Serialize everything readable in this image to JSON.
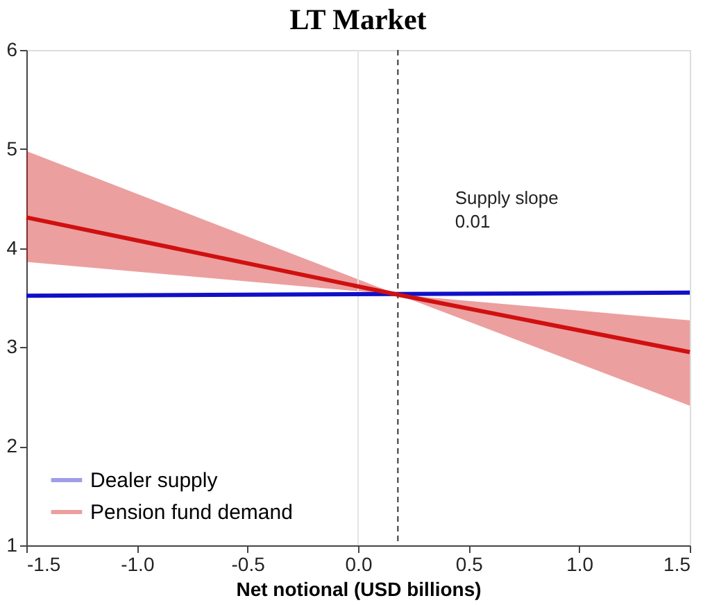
{
  "chart_data": {
    "type": "line",
    "title": "LT Market",
    "xlabel": "Net notional (USD billions)",
    "xlim": [
      -1.5,
      1.5
    ],
    "xticks": [
      {
        "value": -1.5,
        "label": "-1.5"
      },
      {
        "value": -1.0,
        "label": "-1.0"
      },
      {
        "value": -0.5,
        "label": "-0.5"
      },
      {
        "value": 0,
        "label": "0.0"
      },
      {
        "value": 0.5,
        "label": "0.5"
      },
      {
        "value": 1.0,
        "label": "1.0"
      },
      {
        "value": 1.5,
        "label": "1.5"
      }
    ],
    "ylim": [
      1,
      6
    ],
    "yticks": [
      1,
      2,
      3,
      4,
      5,
      6
    ],
    "series": [
      {
        "name": "Dealer supply",
        "color": "#1010c8",
        "x": [
          -1.5,
          1.5
        ],
        "values": [
          3.52,
          3.55
        ]
      },
      {
        "name": "Pension fund demand",
        "color": "#d01010",
        "x": [
          -1.5,
          0.18,
          1.5
        ],
        "values": [
          4.31,
          3.53,
          2.95
        ],
        "lower": [
          3.86,
          3.53,
          2.41
        ],
        "upper": [
          4.98,
          3.53,
          3.27
        ]
      }
    ],
    "ref_lines": [
      {
        "axis": "x",
        "value": 0,
        "color": "#e4e4e4",
        "line_style": "solid"
      },
      {
        "axis": "x",
        "value": 0.18,
        "color": "#333333",
        "line_style": "dashed"
      }
    ],
    "annotations": [
      "Supply slope\n0.01"
    ],
    "legend": "bottom left",
    "grid": false,
    "marker": "none",
    "line_style": "solid"
  }
}
